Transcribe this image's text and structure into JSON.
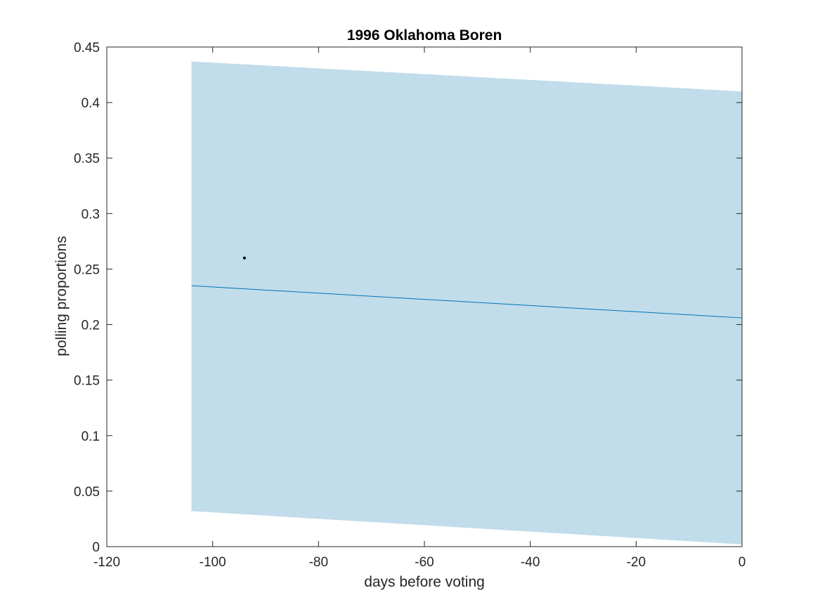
{
  "chart_data": {
    "type": "area",
    "title": "1996 Oklahoma Boren",
    "xlabel": "days before voting",
    "ylabel": "polling proportions",
    "xlim": [
      -120,
      0
    ],
    "ylim": [
      0,
      0.45
    ],
    "xticks": [
      -120,
      -100,
      -80,
      -60,
      -40,
      -20,
      0
    ],
    "xtick_labels": [
      "-120",
      "-100",
      "-80",
      "-60",
      "-40",
      "-20",
      "0"
    ],
    "yticks": [
      0,
      0.05,
      0.1,
      0.15,
      0.2,
      0.25,
      0.3,
      0.35,
      0.4,
      0.45
    ],
    "ytick_labels": [
      "0",
      "0.05",
      "0.1",
      "0.15",
      "0.2",
      "0.25",
      "0.3",
      "0.35",
      "0.4",
      "0.45"
    ],
    "band": {
      "x": [
        -104,
        0
      ],
      "upper": [
        0.437,
        0.41
      ],
      "lower": [
        0.032,
        0.002
      ],
      "color": "#c1dcea"
    },
    "trend_line": {
      "x": [
        -104,
        0
      ],
      "y": [
        0.235,
        0.206
      ],
      "color": "#0072bd"
    },
    "points": [
      {
        "x": -94,
        "y": 0.26
      }
    ],
    "point_color": "#000000",
    "grid": false
  }
}
